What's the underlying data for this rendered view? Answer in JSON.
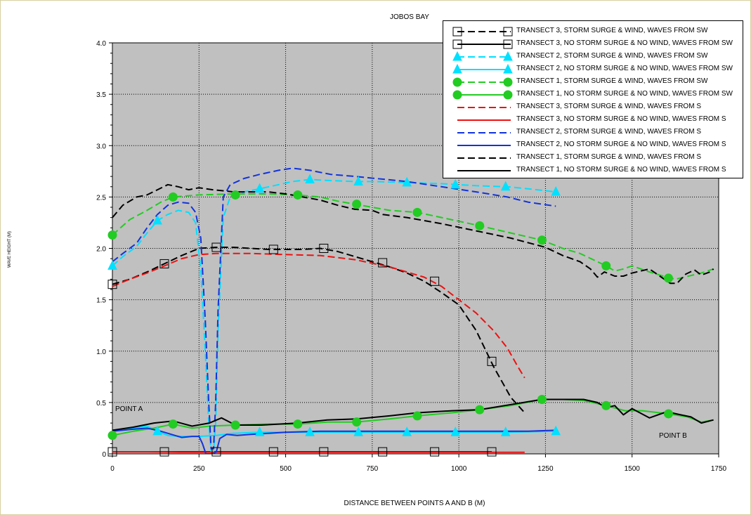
{
  "chart_data": {
    "type": "line",
    "title": "JOBOS BAY",
    "xlabel": "DISTANCE BETWEEN POINTS A AND B (M)",
    "ylabel": "WAVE HEIGHT (M)",
    "xlim": [
      0,
      1750
    ],
    "ylim": [
      0,
      4
    ],
    "xticks": [
      0,
      250,
      500,
      750,
      1000,
      1250,
      1500,
      1750
    ],
    "yticks": [
      "0",
      "0.5",
      "1.0",
      "1.5",
      "2.0",
      "2.5",
      "3.0",
      "3.5",
      "4.0"
    ],
    "annotations": [
      {
        "text": "POINT A",
        "x": 10,
        "y": 0.42
      },
      {
        "text": "POINT B",
        "x": 1580,
        "y": 0.17
      }
    ],
    "legend_position": "top-right",
    "series": [
      {
        "name": "TRANSECT 3, STORM SURGE & WIND, WAVES FROM SW",
        "color": "#000000",
        "dash": "dashed",
        "marker": "square",
        "x": [
          0,
          50,
          100,
          150,
          200,
          250,
          300,
          350,
          400,
          450,
          500,
          550,
          600,
          650,
          700,
          750,
          800,
          850,
          900,
          950,
          1000,
          1050,
          1100,
          1150,
          1190
        ],
        "y": [
          1.65,
          1.7,
          1.77,
          1.85,
          1.93,
          2.0,
          2.01,
          2.01,
          2.0,
          1.99,
          1.99,
          1.99,
          2.0,
          1.97,
          1.92,
          1.87,
          1.82,
          1.76,
          1.68,
          1.57,
          1.45,
          1.2,
          0.85,
          0.55,
          0.4
        ],
        "marker_x": [
          0,
          150,
          300,
          465,
          610,
          780,
          930,
          1095
        ],
        "marker_y": [
          1.65,
          1.85,
          2.01,
          1.99,
          2.0,
          1.86,
          1.68,
          0.9
        ]
      },
      {
        "name": "TRANSECT 3, NO STORM SURGE & NO WIND, WAVES FROM SW",
        "color": "#000000",
        "dash": "solid",
        "marker": "square",
        "x": [
          0,
          150,
          300,
          465,
          610,
          780,
          930,
          1095
        ],
        "y": [
          0.02,
          0.02,
          0.02,
          0.02,
          0.02,
          0.02,
          0.02,
          0.02
        ],
        "marker_x": [
          0,
          150,
          300,
          465,
          610,
          780,
          930,
          1095
        ],
        "marker_y": [
          0.02,
          0.02,
          0.02,
          0.02,
          0.02,
          0.02,
          0.02,
          0.02
        ]
      },
      {
        "name": "TRANSECT 2, STORM SURGE & WIND, WAVES FROM SW",
        "color": "#00e0ff",
        "dash": "dashed",
        "marker": "triangle",
        "x": [
          0,
          30,
          70,
          100,
          130,
          160,
          190,
          220,
          240,
          255,
          268,
          278,
          285,
          292,
          298,
          305,
          320,
          340,
          380,
          425,
          480,
          520,
          570,
          630,
          700,
          760,
          850,
          950,
          1050,
          1140,
          1200,
          1280
        ],
        "y": [
          1.83,
          1.92,
          2.02,
          2.15,
          2.27,
          2.33,
          2.37,
          2.35,
          2.25,
          1.8,
          1.0,
          0.3,
          0.02,
          0.02,
          0.3,
          1.2,
          2.3,
          2.5,
          2.55,
          2.58,
          2.62,
          2.65,
          2.67,
          2.66,
          2.65,
          2.65,
          2.64,
          2.63,
          2.61,
          2.6,
          2.58,
          2.55
        ],
        "marker_x": [
          0,
          130,
          425,
          570,
          710,
          850,
          990,
          1135,
          1280
        ],
        "marker_y": [
          1.83,
          2.27,
          2.58,
          2.67,
          2.65,
          2.64,
          2.62,
          2.6,
          2.55
        ]
      },
      {
        "name": "TRANSECT 2, NO STORM SURGE & NO WIND, WAVES FROM SW",
        "color": "#00e0ff",
        "dash": "solid",
        "marker": "triangle",
        "x": [
          0,
          60,
          100,
          130,
          160,
          200,
          250,
          300,
          350,
          425,
          500,
          570,
          710,
          850,
          990,
          1135,
          1280
        ],
        "y": [
          0.22,
          0.25,
          0.27,
          0.22,
          0.18,
          0.17,
          0.17,
          0.18,
          0.2,
          0.21,
          0.21,
          0.21,
          0.21,
          0.21,
          0.21,
          0.21,
          0.22
        ],
        "marker_x": [
          130,
          425,
          570,
          710,
          850,
          990,
          1135,
          1280
        ],
        "marker_y": [
          0.22,
          0.21,
          0.21,
          0.21,
          0.21,
          0.21,
          0.21,
          0.22
        ]
      },
      {
        "name": "TRANSECT 1, STORM SURGE & WIND, WAVES FROM SW",
        "color": "#22cc22",
        "dash": "dashed",
        "marker": "circle",
        "x": [
          0,
          50,
          100,
          140,
          175,
          250,
          350,
          450,
          530,
          600,
          650,
          700,
          750,
          800,
          880,
          950,
          1060,
          1150,
          1240,
          1300,
          1350,
          1400,
          1425,
          1450,
          1475,
          1500,
          1550,
          1600,
          1625,
          1650,
          1700,
          1735
        ],
        "y": [
          2.13,
          2.28,
          2.37,
          2.45,
          2.5,
          2.52,
          2.53,
          2.53,
          2.52,
          2.5,
          2.46,
          2.43,
          2.4,
          2.37,
          2.35,
          2.3,
          2.22,
          2.15,
          2.08,
          2.0,
          1.95,
          1.87,
          1.83,
          1.78,
          1.8,
          1.83,
          1.77,
          1.72,
          1.7,
          1.72,
          1.76,
          1.8
        ],
        "marker_x": [
          0,
          175,
          355,
          535,
          705,
          880,
          1060,
          1240,
          1425,
          1605
        ],
        "marker_y": [
          2.13,
          2.5,
          2.52,
          2.52,
          2.43,
          2.35,
          2.22,
          2.08,
          1.83,
          1.71
        ]
      },
      {
        "name": "TRANSECT 1, NO STORM SURGE & NO WIND, WAVES FROM SW",
        "color": "#22cc22",
        "dash": "solid",
        "marker": "circle",
        "x": [
          0,
          60,
          120,
          175,
          230,
          280,
          355,
          430,
          535,
          620,
          705,
          800,
          880,
          980,
          1060,
          1150,
          1240,
          1300,
          1360,
          1425,
          1480,
          1530,
          1605,
          1660,
          1700,
          1735
        ],
        "y": [
          0.18,
          0.22,
          0.25,
          0.29,
          0.25,
          0.27,
          0.28,
          0.29,
          0.29,
          0.31,
          0.31,
          0.34,
          0.37,
          0.4,
          0.43,
          0.47,
          0.53,
          0.53,
          0.52,
          0.47,
          0.42,
          0.42,
          0.39,
          0.36,
          0.31,
          0.33
        ],
        "marker_x": [
          0,
          175,
          355,
          535,
          705,
          880,
          1060,
          1240,
          1425,
          1605
        ],
        "marker_y": [
          0.18,
          0.29,
          0.28,
          0.29,
          0.31,
          0.37,
          0.43,
          0.53,
          0.47,
          0.39
        ]
      },
      {
        "name": "TRANSECT 3, STORM SURGE & WIND, WAVES FROM S",
        "color": "#ee1111",
        "dash": "dashed",
        "marker": "none",
        "x": [
          0,
          50,
          100,
          150,
          200,
          250,
          300,
          400,
          500,
          600,
          700,
          800,
          900,
          950,
          1000,
          1050,
          1100,
          1140,
          1170,
          1190
        ],
        "y": [
          1.63,
          1.7,
          1.76,
          1.83,
          1.9,
          1.94,
          1.95,
          1.95,
          1.94,
          1.93,
          1.89,
          1.82,
          1.72,
          1.63,
          1.5,
          1.37,
          1.2,
          1.03,
          0.85,
          0.74
        ]
      },
      {
        "name": "TRANSECT 3, NO STORM SURGE & NO WIND, WAVES FROM S",
        "color": "#ee1111",
        "dash": "solid",
        "marker": "none",
        "x": [
          0,
          100,
          200,
          300,
          400,
          500,
          600,
          700,
          800,
          900,
          1000,
          1100,
          1190
        ],
        "y": [
          0.02,
          0.02,
          0.015,
          0.015,
          0.015,
          0.015,
          0.015,
          0.015,
          0.015,
          0.015,
          0.015,
          0.015,
          0.015
        ]
      },
      {
        "name": "TRANSECT 2, STORM SURGE & WIND, WAVES FROM S",
        "color": "#1133dd",
        "dash": "dashed",
        "marker": "none",
        "x": [
          0,
          30,
          70,
          100,
          130,
          160,
          190,
          220,
          240,
          255,
          268,
          278,
          285,
          292,
          298,
          305,
          320,
          340,
          380,
          425,
          480,
          520,
          570,
          630,
          700,
          760,
          850,
          950,
          1050,
          1140,
          1200,
          1280
        ],
        "y": [
          1.87,
          1.95,
          2.05,
          2.2,
          2.33,
          2.42,
          2.45,
          2.44,
          2.35,
          2.1,
          1.3,
          0.5,
          0.05,
          0.05,
          0.5,
          1.4,
          2.5,
          2.62,
          2.68,
          2.72,
          2.76,
          2.78,
          2.76,
          2.72,
          2.7,
          2.68,
          2.65,
          2.6,
          2.55,
          2.5,
          2.45,
          2.41
        ]
      },
      {
        "name": "TRANSECT 2, NO STORM SURGE & NO WIND, WAVES FROM S",
        "color": "#1133dd",
        "dash": "solid",
        "marker": "none",
        "x": [
          0,
          60,
          100,
          140,
          180,
          200,
          230,
          250,
          260,
          270,
          280,
          290,
          300,
          310,
          330,
          360,
          400,
          450,
          500,
          600,
          700,
          800,
          900,
          1000,
          1100,
          1200,
          1280
        ],
        "y": [
          0.22,
          0.24,
          0.25,
          0.22,
          0.18,
          0.16,
          0.17,
          0.17,
          0.1,
          0.0,
          0.0,
          0.0,
          0.02,
          0.15,
          0.19,
          0.18,
          0.19,
          0.2,
          0.21,
          0.22,
          0.22,
          0.22,
          0.22,
          0.22,
          0.22,
          0.22,
          0.23
        ]
      },
      {
        "name": "TRANSECT 1, STORM SURGE & WIND, WAVES FROM S",
        "color": "#000000",
        "dash": "dashed",
        "marker": "none",
        "x": [
          0,
          30,
          70,
          100,
          130,
          160,
          190,
          220,
          250,
          290,
          350,
          400,
          450,
          500,
          550,
          600,
          650,
          700,
          750,
          780,
          850,
          950,
          1050,
          1150,
          1250,
          1300,
          1350,
          1380,
          1400,
          1420,
          1450,
          1475,
          1500,
          1550,
          1580,
          1610,
          1630,
          1655,
          1680,
          1700,
          1725,
          1735
        ],
        "y": [
          2.3,
          2.42,
          2.5,
          2.52,
          2.57,
          2.62,
          2.6,
          2.57,
          2.59,
          2.57,
          2.55,
          2.55,
          2.55,
          2.53,
          2.5,
          2.47,
          2.42,
          2.38,
          2.37,
          2.33,
          2.3,
          2.24,
          2.17,
          2.1,
          2.01,
          1.93,
          1.87,
          1.8,
          1.72,
          1.77,
          1.73,
          1.73,
          1.76,
          1.8,
          1.73,
          1.66,
          1.66,
          1.75,
          1.79,
          1.74,
          1.77,
          1.8
        ]
      },
      {
        "name": "TRANSECT 1, NO STORM SURGE & NO WIND, WAVES FROM S",
        "color": "#000000",
        "dash": "solid",
        "marker": "none",
        "x": [
          0,
          60,
          120,
          175,
          230,
          280,
          315,
          355,
          430,
          535,
          620,
          705,
          800,
          880,
          980,
          1060,
          1150,
          1240,
          1300,
          1360,
          1400,
          1425,
          1450,
          1475,
          1500,
          1550,
          1600,
          1640,
          1670,
          1700,
          1735
        ],
        "y": [
          0.23,
          0.26,
          0.3,
          0.32,
          0.27,
          0.3,
          0.35,
          0.28,
          0.28,
          0.3,
          0.33,
          0.34,
          0.37,
          0.4,
          0.42,
          0.43,
          0.48,
          0.53,
          0.53,
          0.53,
          0.5,
          0.45,
          0.47,
          0.38,
          0.44,
          0.35,
          0.41,
          0.38,
          0.36,
          0.3,
          0.33
        ]
      }
    ]
  }
}
